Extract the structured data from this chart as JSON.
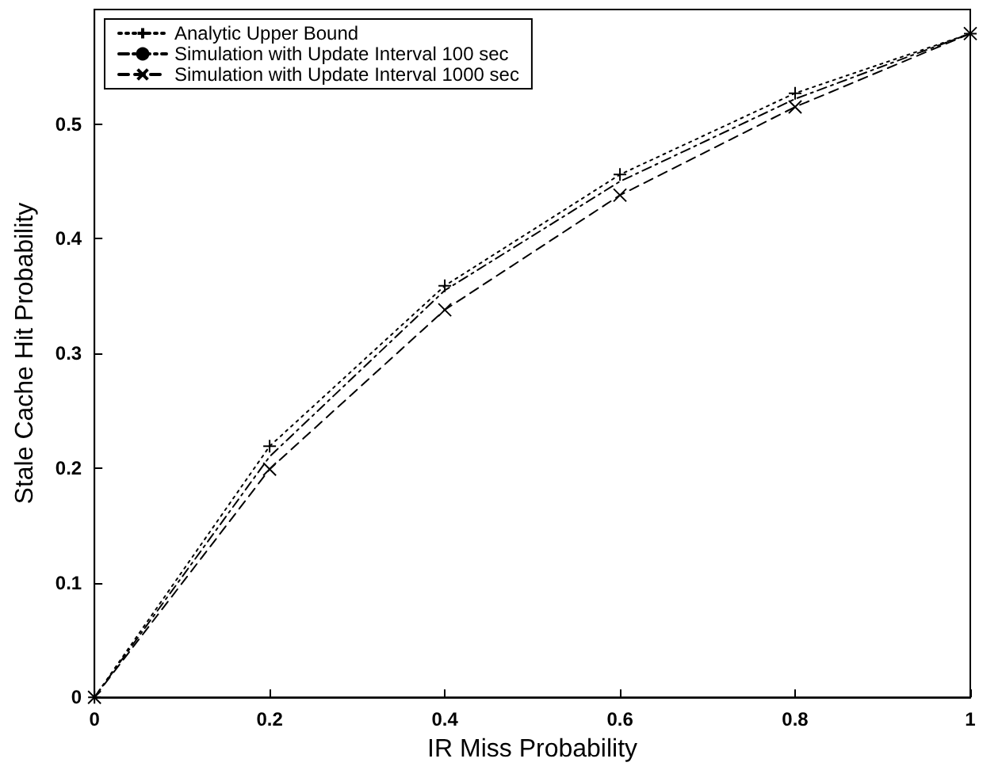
{
  "chart_data": {
    "type": "line",
    "xlabel": "IR Miss Probability",
    "ylabel": "Stale Cache Hit Probability",
    "x": [
      0,
      0.2,
      0.4,
      0.6,
      0.8,
      1
    ],
    "series": [
      {
        "name": "Analytic Upper Bound",
        "color": "#000000",
        "marker": "cross",
        "line_style": "dotted",
        "values": [
          0,
          0.219,
          0.359,
          0.456,
          0.527,
          0.579
        ]
      },
      {
        "name": "Simulation with Update Interval 100 sec",
        "color": "#000000",
        "marker": "none",
        "line_style": "dashdot",
        "values": [
          0,
          0.21,
          0.355,
          0.45,
          0.522,
          0.579
        ]
      },
      {
        "name": "Simulation with Update Interval 1000 sec",
        "color": "#000000",
        "marker": "x",
        "line_style": "dashed",
        "values": [
          0,
          0.199,
          0.338,
          0.438,
          0.515,
          0.579
        ]
      }
    ],
    "xlim": [
      0,
      1
    ],
    "xticks": [
      0,
      0.2,
      0.4,
      0.6,
      0.8,
      1
    ],
    "ylim": [
      0,
      0.6
    ],
    "yticks": [
      0,
      0.1,
      0.2,
      0.3,
      0.4,
      0.5
    ],
    "grid": false,
    "legend": "top left"
  }
}
